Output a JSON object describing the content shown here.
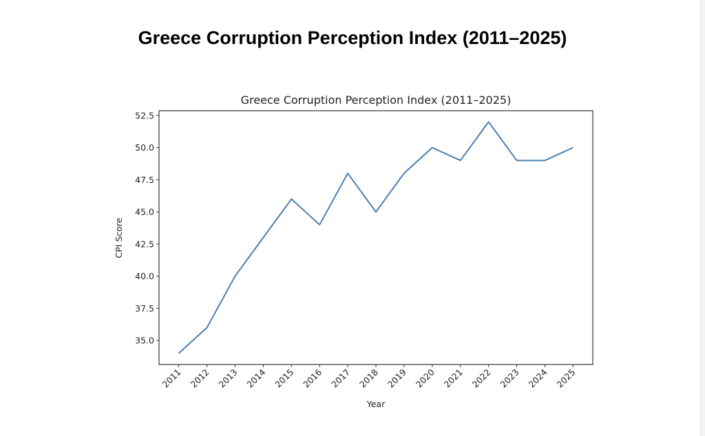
{
  "page": {
    "title": "Greece Corruption Perception Index (2011–2025)"
  },
  "chart_data": {
    "type": "line",
    "title": "Greece Corruption Perception Index (2011–2025)",
    "xlabel": "Year",
    "ylabel": "CPI Score",
    "x": [
      2011,
      2012,
      2013,
      2014,
      2015,
      2016,
      2017,
      2018,
      2019,
      2020,
      2021,
      2022,
      2023,
      2024,
      2025
    ],
    "xtick_labels": [
      "2011",
      "2012",
      "2013",
      "2014",
      "2015",
      "2016",
      "2017",
      "2018",
      "2019",
      "2020",
      "2021",
      "2022",
      "2023",
      "2024",
      "2025"
    ],
    "series": [
      {
        "values": [
          34,
          36,
          40,
          43,
          46,
          44,
          48,
          45,
          48,
          50,
          49,
          52,
          49,
          49,
          50
        ],
        "color": "#4a7fb0"
      }
    ],
    "yticks": [
      35.0,
      37.5,
      40.0,
      42.5,
      45.0,
      47.5,
      50.0,
      52.5
    ],
    "ytick_labels": [
      "35.0",
      "37.5",
      "40.0",
      "42.5",
      "45.0",
      "47.5",
      "50.0",
      "52.5"
    ],
    "xlim": [
      2010.3,
      2025.7
    ],
    "ylim": [
      33.13,
      52.87
    ],
    "grid": false,
    "legend": "none"
  }
}
